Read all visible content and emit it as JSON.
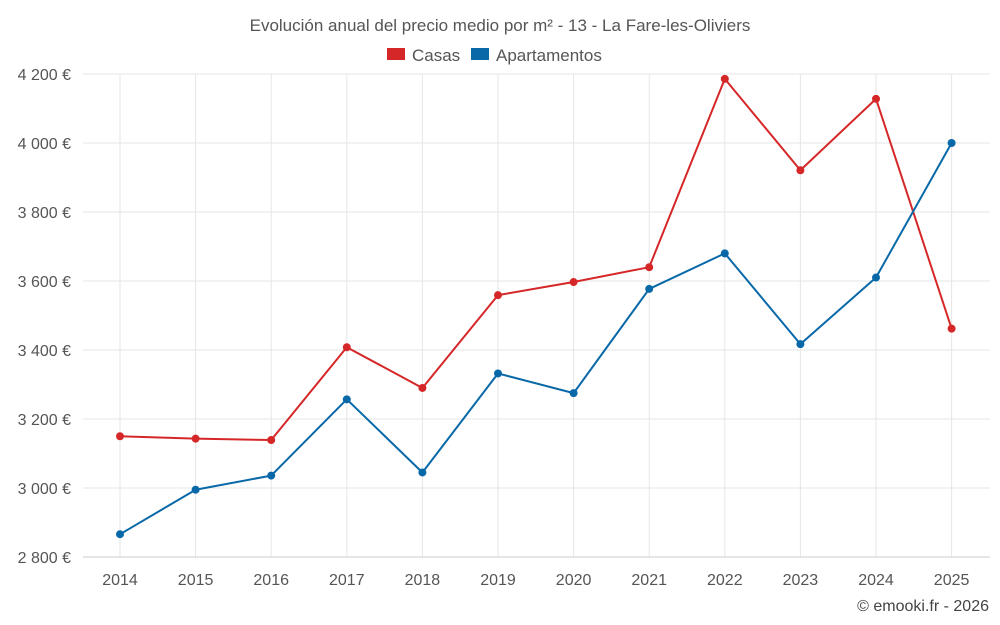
{
  "chart_data": {
    "type": "line",
    "title": "Evolución anual del precio medio por m² - 13 - La Fare-les-Oliviers",
    "categories": [
      "2014",
      "2015",
      "2016",
      "2017",
      "2018",
      "2019",
      "2020",
      "2021",
      "2022",
      "2023",
      "2024",
      "2025"
    ],
    "series": [
      {
        "name": "Casas",
        "color": "#d62728",
        "values": [
          3150,
          3143,
          3139,
          3408,
          3290,
          3559,
          3597,
          3640,
          4186,
          3921,
          4128,
          3462
        ]
      },
      {
        "name": "Apartamentos",
        "color": "#0868a8",
        "values": [
          2866,
          2995,
          3036,
          3257,
          3045,
          3332,
          3275,
          3577,
          3680,
          3417,
          3610,
          4000
        ]
      }
    ],
    "ylim": [
      2800,
      4200
    ],
    "yticks": [
      2800,
      3000,
      3200,
      3400,
      3600,
      3800,
      4000,
      4200
    ],
    "ytick_labels": [
      "2 800 €",
      "3 000 €",
      "3 200 €",
      "3 400 €",
      "3 600 €",
      "3 800 €",
      "4 000 €",
      "4 200 €"
    ],
    "xlabel": "",
    "ylabel": "",
    "grid": true,
    "legend_position": "top-center"
  },
  "credit": "© emooki.fr - 2026"
}
